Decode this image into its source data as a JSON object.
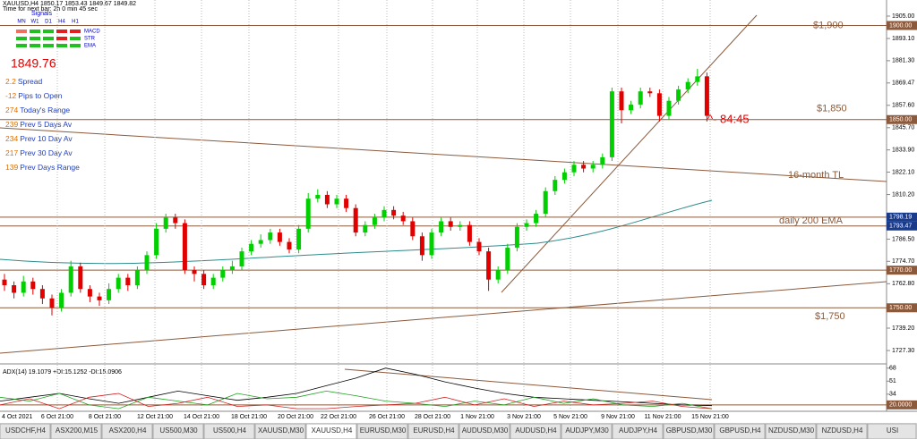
{
  "header": {
    "symbol_line": "XAUUSD,H4  1850.17 1853.43 1849.67 1849.82",
    "timer": "Time for next bar: 2h 0 min 45 sec",
    "signals": "Signals"
  },
  "signals": {
    "columns": [
      "MN",
      "W1",
      "D1",
      "H4",
      "H1"
    ],
    "rows": [
      "MACD",
      "STR",
      "EMA"
    ]
  },
  "price": "1849.76",
  "stats": [
    {
      "value": "2.2",
      "label": "Spread"
    },
    {
      "value": "-12",
      "label": "Pips to Open"
    },
    {
      "value": "274",
      "label": "Today's Range"
    },
    {
      "value": "239",
      "label": "Prev 5 Days Av"
    },
    {
      "value": "234",
      "label": "Prev 10 Day Av"
    },
    {
      "value": "217",
      "label": "Prev 30 Day Av"
    },
    {
      "value": "139",
      "label": "Prev Days Range"
    }
  ],
  "chart_data": {
    "type": "candlestick",
    "ylim": [
      1721.15,
      1913.55
    ],
    "yticks": [
      {
        "value": 1905,
        "label": "1905.00"
      },
      {
        "value": 1893.1,
        "label": "1893.10"
      },
      {
        "value": 1881.3,
        "label": "1881.30"
      },
      {
        "value": 1869.47,
        "label": "1869.47"
      },
      {
        "value": 1857.6,
        "label": "1857.60"
      },
      {
        "value": 1845.7,
        "label": "1845.70"
      },
      {
        "value": 1833.9,
        "label": "1833.90"
      },
      {
        "value": 1822.1,
        "label": "1822.10"
      },
      {
        "value": 1810.2,
        "label": "1810.20"
      },
      {
        "value": 1786.5,
        "label": "1786.50"
      },
      {
        "value": 1774.7,
        "label": "1774.70"
      },
      {
        "value": 1762.8,
        "label": "1762.80"
      },
      {
        "value": 1739.2,
        "label": "1739.20"
      },
      {
        "value": 1727.3,
        "label": "1727.30"
      }
    ],
    "levels": [
      {
        "value": 1900,
        "label": "1900.00",
        "note": "$1,900"
      },
      {
        "value": 1850,
        "label": "1850.00",
        "note": "$1,850"
      },
      {
        "value": 1798.19,
        "label": "1798.19"
      },
      {
        "value": 1793.47,
        "label": "1793.47"
      },
      {
        "value": 1770,
        "label": "1770.00"
      },
      {
        "value": 1750,
        "label": "1750.00",
        "note": "$1,750"
      }
    ],
    "annotations": [
      "16-month TL",
      "daily 200 EMA",
      "^- 84:45"
    ],
    "dates": [
      "4 Oct 2021",
      "6 Oct 21:00",
      "8 Oct 21:00",
      "12 Oct 21:00",
      "14 Oct 21:00",
      "18 Oct 21:00",
      "20 Oct 21:00",
      "22 Oct 21:00",
      "26 Oct 21:00",
      "28 Oct 21:00",
      "1 Nov 21:00",
      "3 Nov 21:00",
      "5 Nov 21:00",
      "9 Nov 21:00",
      "11 Nov 21:00",
      "15 Nov 21:00"
    ],
    "up_color": "#00d000",
    "down_color": "#e00000",
    "candles": [
      [
        1765,
        1768,
        1759,
        1762
      ],
      [
        1762,
        1764,
        1755,
        1758
      ],
      [
        1758,
        1767,
        1756,
        1764
      ],
      [
        1764,
        1766,
        1757,
        1760
      ],
      [
        1760,
        1762,
        1752,
        1755
      ],
      [
        1755,
        1757,
        1746,
        1750
      ],
      [
        1750,
        1760,
        1748,
        1758
      ],
      [
        1758,
        1775,
        1756,
        1772
      ],
      [
        1772,
        1774,
        1758,
        1760
      ],
      [
        1760,
        1762,
        1753,
        1756
      ],
      [
        1756,
        1758,
        1751,
        1754
      ],
      [
        1754,
        1763,
        1752,
        1760
      ],
      [
        1760,
        1768,
        1758,
        1766
      ],
      [
        1766,
        1768,
        1759,
        1762
      ],
      [
        1762,
        1772,
        1760,
        1770
      ],
      [
        1770,
        1780,
        1768,
        1778
      ],
      [
        1778,
        1795,
        1776,
        1792
      ],
      [
        1792,
        1800,
        1790,
        1798
      ],
      [
        1798,
        1800,
        1792,
        1795
      ],
      [
        1795,
        1797,
        1768,
        1770
      ],
      [
        1770,
        1772,
        1764,
        1768
      ],
      [
        1768,
        1770,
        1760,
        1762
      ],
      [
        1762,
        1768,
        1760,
        1766
      ],
      [
        1766,
        1772,
        1764,
        1770
      ],
      [
        1770,
        1775,
        1768,
        1772
      ],
      [
        1772,
        1782,
        1770,
        1780
      ],
      [
        1780,
        1786,
        1778,
        1784
      ],
      [
        1784,
        1789,
        1782,
        1786
      ],
      [
        1786,
        1792,
        1784,
        1790
      ],
      [
        1790,
        1792,
        1783,
        1785
      ],
      [
        1785,
        1787,
        1779,
        1781
      ],
      [
        1781,
        1794,
        1779,
        1792
      ],
      [
        1792,
        1811,
        1790,
        1808
      ],
      [
        1808,
        1813,
        1806,
        1810
      ],
      [
        1810,
        1812,
        1803,
        1805
      ],
      [
        1805,
        1810,
        1803,
        1808
      ],
      [
        1808,
        1810,
        1801,
        1803
      ],
      [
        1803,
        1805,
        1788,
        1790
      ],
      [
        1790,
        1796,
        1788,
        1794
      ],
      [
        1794,
        1800,
        1792,
        1798
      ],
      [
        1798,
        1804,
        1796,
        1802
      ],
      [
        1802,
        1804,
        1797,
        1799
      ],
      [
        1799,
        1801,
        1794,
        1796
      ],
      [
        1796,
        1798,
        1786,
        1788
      ],
      [
        1788,
        1790,
        1775,
        1778
      ],
      [
        1778,
        1792,
        1776,
        1790
      ],
      [
        1790,
        1798,
        1788,
        1796
      ],
      [
        1796,
        1798,
        1791,
        1793
      ],
      [
        1793,
        1796,
        1791,
        1794
      ],
      [
        1794,
        1796,
        1783,
        1785
      ],
      [
        1785,
        1787,
        1778,
        1780
      ],
      [
        1780,
        1782,
        1759,
        1765
      ],
      [
        1765,
        1772,
        1763,
        1770
      ],
      [
        1770,
        1784,
        1768,
        1782
      ],
      [
        1782,
        1795,
        1780,
        1793
      ],
      [
        1793,
        1797,
        1791,
        1795
      ],
      [
        1795,
        1802,
        1793,
        1800
      ],
      [
        1800,
        1814,
        1798,
        1812
      ],
      [
        1812,
        1820,
        1810,
        1818
      ],
      [
        1818,
        1824,
        1816,
        1822
      ],
      [
        1822,
        1828,
        1820,
        1826
      ],
      [
        1826,
        1828,
        1822,
        1824
      ],
      [
        1824,
        1828,
        1822,
        1826
      ],
      [
        1826,
        1832,
        1824,
        1830
      ],
      [
        1830,
        1867,
        1828,
        1865
      ],
      [
        1865,
        1867,
        1848,
        1855
      ],
      [
        1855,
        1860,
        1853,
        1858
      ],
      [
        1858,
        1867,
        1856,
        1865
      ],
      [
        1865,
        1867,
        1862,
        1864
      ],
      [
        1864,
        1866,
        1849,
        1852
      ],
      [
        1852,
        1862,
        1850,
        1860
      ],
      [
        1860,
        1868,
        1858,
        1866
      ],
      [
        1866,
        1872,
        1864,
        1870
      ],
      [
        1870,
        1877,
        1868,
        1873
      ],
      [
        1873,
        1875,
        1849,
        1852
      ]
    ]
  },
  "indicator": {
    "title": "ADX(14) 19.1079 +DI:15.1252 -DI:15.0906",
    "ylim": [
      14,
      70
    ],
    "yticks": [
      68,
      51,
      34,
      {
        "value": 20,
        "label": "20.0000"
      }
    ],
    "series": [
      {
        "name": "ADX",
        "color": "#000000",
        "values": [
          25,
          30,
          35,
          28,
          22,
          30,
          38,
          32,
          26,
          30,
          35,
          45,
          55,
          68,
          60,
          50,
          42,
          35,
          30,
          28,
          26,
          24,
          22,
          20,
          19
        ]
      },
      {
        "name": "+DI",
        "color": "#20a020",
        "values": [
          30,
          25,
          35,
          20,
          15,
          30,
          25,
          20,
          35,
          28,
          30,
          38,
          32,
          25,
          22,
          18,
          25,
          20,
          30,
          22,
          28,
          20,
          18,
          22,
          15
        ]
      },
      {
        "name": "-DI",
        "color": "#d02020",
        "values": [
          20,
          28,
          15,
          30,
          35,
          18,
          22,
          30,
          18,
          20,
          15,
          15,
          18,
          20,
          22,
          30,
          20,
          28,
          18,
          25,
          20,
          22,
          25,
          18,
          15
        ]
      }
    ]
  },
  "tabs": [
    "USDCHF,H4",
    "ASX200,M15",
    "ASX200,H4",
    "US500,M30",
    "US500,H4",
    "XAUUSD,M30",
    "XAUUSD,H4",
    "EURUSD,M30",
    "EURUSD,H4",
    "AUDUSD,M30",
    "AUDUSD,H4",
    "AUDJPY,M30",
    "AUDJPY,H4",
    "GBPUSD,M30",
    "GBPUSD,H4",
    "NZDUSD,M30",
    "NZDUSD,H4",
    "USI"
  ],
  "active_tab": "XAUUSD,H4"
}
